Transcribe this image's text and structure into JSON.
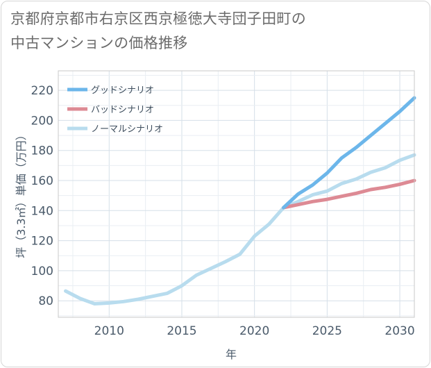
{
  "title": "京都府京都市右京区西京極徳大寺団子田町の\n中古マンションの価格推移",
  "chart_data": {
    "type": "line",
    "title": "京都府京都市右京区西京極徳大寺団子田町の中古マンションの価格推移",
    "xlabel": "年",
    "ylabel": "坪（3.3㎡）単価（万円）",
    "xlim": [
      2006.5,
      2031
    ],
    "ylim": [
      69,
      233
    ],
    "xticks": [
      2010,
      2015,
      2020,
      2025,
      2030
    ],
    "yticks": [
      80,
      100,
      120,
      140,
      160,
      180,
      200,
      220
    ],
    "grid": true,
    "legend_position": "top-left",
    "series": [
      {
        "name": "グッドシナリオ",
        "color": "#6cb6ea",
        "x": [
          2022,
          2023,
          2024,
          2025,
          2026,
          2027,
          2028,
          2029,
          2030,
          2031
        ],
        "y": [
          142,
          151,
          157,
          165,
          175,
          182,
          190,
          198,
          206,
          215
        ]
      },
      {
        "name": "バッドシナリオ",
        "color": "#dd8a94",
        "x": [
          2022,
          2023,
          2024,
          2025,
          2026,
          2027,
          2028,
          2029,
          2030,
          2031
        ],
        "y": [
          142,
          144,
          146,
          147.5,
          149.5,
          151.5,
          154,
          155.5,
          157.5,
          160
        ]
      },
      {
        "name": "ノーマルシナリオ",
        "color": "#b8dcee",
        "x": [
          2007,
          2008,
          2009,
          2010,
          2011,
          2012,
          2013,
          2014,
          2015,
          2016,
          2017,
          2018,
          2019,
          2020,
          2021,
          2022,
          2023,
          2024,
          2025,
          2026,
          2027,
          2028,
          2029,
          2030,
          2031
        ],
        "y": [
          86.5,
          81.5,
          78,
          78.5,
          79.5,
          81,
          83,
          85,
          90,
          97,
          101.5,
          106,
          111,
          123,
          131,
          142,
          146,
          150.5,
          153,
          158,
          161,
          165.5,
          168.5,
          173.5,
          177
        ]
      }
    ]
  }
}
